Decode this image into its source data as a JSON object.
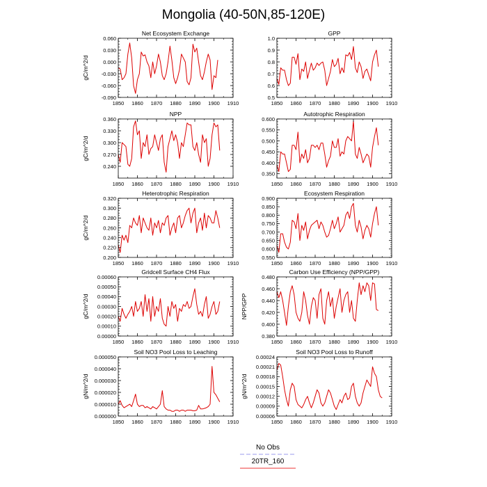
{
  "figure": {
    "title": "Mongolia (40-50N,85-120E)"
  },
  "legend": {
    "items": [
      {
        "label": "No Obs",
        "color": "#9999ee",
        "dashed": true
      },
      {
        "label": "20TR_160",
        "color": "#ee3333",
        "dashed": false
      }
    ]
  },
  "series_color": "#dd0000",
  "chart_data": [
    {
      "type": "line",
      "title": "Net Ecosystem Exchange",
      "ylabel": "gC/m^2/d",
      "xlabel": "",
      "xlim": [
        1850,
        1910
      ],
      "xticks": [
        1850,
        1860,
        1870,
        1880,
        1890,
        1900,
        1910
      ],
      "xticklabels": [
        "1850",
        "1860",
        "1870",
        "1880",
        "1890",
        "1900",
        "1910"
      ],
      "ylim": [
        -0.09,
        0.06
      ],
      "yticks": [
        -0.09,
        -0.06,
        -0.03,
        0.0,
        0.03,
        0.06
      ],
      "yticklabels": [
        "-0.090",
        "-0.060",
        "-0.030",
        "0.000",
        "0.030",
        "0.060"
      ],
      "series": [
        {
          "name": "20TR_160",
          "x_start": 1850,
          "values": [
            -0.015,
            -0.018,
            -0.045,
            -0.04,
            -0.03,
            0.02,
            0.048,
            0.01,
            -0.06,
            -0.08,
            -0.045,
            -0.03,
            0.025,
            0.015,
            0.018,
            0.0,
            -0.01,
            -0.04,
            0.0,
            -0.03,
            -0.01,
            0.02,
            0.0,
            -0.035,
            -0.045,
            -0.03,
            0.0,
            0.04,
            0.005,
            -0.04,
            -0.055,
            -0.04,
            -0.02,
            0.02,
            0.01,
            0.0,
            -0.05,
            -0.058,
            -0.04,
            0.045,
            0.025,
            0.035,
            0.0,
            -0.035,
            -0.045,
            -0.025,
            0.0,
            0.02,
            0.005,
            -0.07,
            -0.035,
            -0.04,
            0.005
          ]
        }
      ]
    },
    {
      "type": "line",
      "title": "GPP",
      "ylabel": "",
      "xlabel": "",
      "xlim": [
        1850,
        1910
      ],
      "xticks": [
        1850,
        1860,
        1870,
        1880,
        1890,
        1900,
        1910
      ],
      "xticklabels": [
        "1850",
        "1860",
        "1870",
        "1880",
        "1890",
        "1900",
        "1910"
      ],
      "ylim": [
        0.5,
        1.0
      ],
      "yticks": [
        0.5,
        0.6,
        0.7,
        0.8,
        0.9,
        1.0
      ],
      "yticklabels": [
        "0.5",
        "0.6",
        "0.7",
        "0.8",
        "0.9",
        "1.0"
      ],
      "series": [
        {
          "name": "20TR_160",
          "x_start": 1850,
          "values": [
            0.66,
            0.61,
            0.75,
            0.73,
            0.73,
            0.65,
            0.6,
            0.62,
            0.84,
            0.84,
            0.78,
            0.87,
            0.65,
            0.74,
            0.72,
            0.8,
            0.66,
            0.73,
            0.79,
            0.73,
            0.75,
            0.79,
            0.77,
            0.79,
            0.8,
            0.73,
            0.6,
            0.66,
            0.72,
            0.82,
            0.76,
            0.78,
            0.83,
            0.7,
            0.75,
            0.71,
            0.86,
            0.85,
            0.88,
            0.82,
            0.93,
            0.75,
            0.71,
            0.8,
            0.76,
            0.66,
            0.72,
            0.74,
            0.69,
            0.64,
            0.8,
            0.86,
            0.9,
            0.76
          ]
        }
      ]
    },
    {
      "type": "line",
      "title": "NPP",
      "ylabel": "gC/m^2/d",
      "xlabel": "",
      "xlim": [
        1850,
        1910
      ],
      "xticks": [
        1850,
        1860,
        1870,
        1880,
        1890,
        1900,
        1910
      ],
      "xticklabels": [
        "1850",
        "1860",
        "1870",
        "1880",
        "1890",
        "1900",
        "1910"
      ],
      "ylim": [
        0.21,
        0.36
      ],
      "yticks": [
        0.24,
        0.27,
        0.3,
        0.33,
        0.36
      ],
      "yticklabels": [
        "0.240",
        "0.270",
        "0.300",
        "0.330",
        "0.360"
      ],
      "series": [
        {
          "name": "20TR_160",
          "x_start": 1850,
          "values": [
            0.27,
            0.25,
            0.3,
            0.295,
            0.29,
            0.245,
            0.24,
            0.26,
            0.34,
            0.355,
            0.32,
            0.33,
            0.26,
            0.3,
            0.29,
            0.32,
            0.27,
            0.285,
            0.29,
            0.32,
            0.3,
            0.28,
            0.31,
            0.32,
            0.25,
            0.225,
            0.29,
            0.31,
            0.33,
            0.305,
            0.32,
            0.3,
            0.26,
            0.3,
            0.29,
            0.32,
            0.35,
            0.345,
            0.345,
            0.29,
            0.28,
            0.3,
            0.27,
            0.25,
            0.32,
            0.3,
            0.31,
            0.24,
            0.26,
            0.32,
            0.35,
            0.34,
            0.345,
            0.28
          ]
        }
      ]
    },
    {
      "type": "line",
      "title": "Autotrophic Respiration",
      "ylabel": "",
      "xlabel": "",
      "xlim": [
        1850,
        1910
      ],
      "xticks": [
        1850,
        1860,
        1870,
        1880,
        1890,
        1900,
        1910
      ],
      "xticklabels": [
        "1850",
        "1860",
        "1870",
        "1880",
        "1890",
        "1900",
        "1910"
      ],
      "ylim": [
        0.33,
        0.6
      ],
      "yticks": [
        0.35,
        0.4,
        0.45,
        0.5,
        0.55,
        0.6
      ],
      "yticklabels": [
        "0.350",
        "0.400",
        "0.450",
        "0.500",
        "0.550",
        "0.600"
      ],
      "series": [
        {
          "name": "20TR_160",
          "x_start": 1850,
          "values": [
            0.39,
            0.36,
            0.45,
            0.44,
            0.44,
            0.4,
            0.36,
            0.37,
            0.48,
            0.48,
            0.46,
            0.54,
            0.4,
            0.44,
            0.42,
            0.46,
            0.4,
            0.42,
            0.48,
            0.48,
            0.47,
            0.48,
            0.46,
            0.49,
            0.49,
            0.44,
            0.38,
            0.41,
            0.43,
            0.5,
            0.47,
            0.47,
            0.51,
            0.43,
            0.45,
            0.44,
            0.5,
            0.52,
            0.51,
            0.5,
            0.59,
            0.44,
            0.42,
            0.47,
            0.44,
            0.4,
            0.42,
            0.44,
            0.43,
            0.38,
            0.47,
            0.52,
            0.56,
            0.48
          ]
        }
      ]
    },
    {
      "type": "line",
      "title": "Heterotrophic Respiration",
      "ylabel": "gC/m^2/d",
      "xlabel": "",
      "xlim": [
        1850,
        1910
      ],
      "xticks": [
        1850,
        1860,
        1870,
        1880,
        1890,
        1900,
        1910
      ],
      "xticklabels": [
        "1850",
        "1860",
        "1870",
        "1880",
        "1890",
        "1900",
        "1910"
      ],
      "ylim": [
        0.2,
        0.32
      ],
      "yticks": [
        0.2,
        0.22,
        0.24,
        0.26,
        0.28,
        0.3,
        0.32
      ],
      "yticklabels": [
        "0.200",
        "0.220",
        "0.240",
        "0.260",
        "0.280",
        "0.300",
        "0.320"
      ],
      "series": [
        {
          "name": "20TR_160",
          "x_start": 1850,
          "values": [
            0.225,
            0.21,
            0.245,
            0.235,
            0.245,
            0.23,
            0.265,
            0.26,
            0.28,
            0.27,
            0.265,
            0.285,
            0.25,
            0.28,
            0.27,
            0.26,
            0.255,
            0.28,
            0.245,
            0.27,
            0.26,
            0.275,
            0.25,
            0.27,
            0.265,
            0.28,
            0.285,
            0.245,
            0.26,
            0.27,
            0.25,
            0.28,
            0.285,
            0.26,
            0.27,
            0.285,
            0.295,
            0.3,
            0.27,
            0.29,
            0.3,
            0.25,
            0.27,
            0.28,
            0.255,
            0.29,
            0.26,
            0.285,
            0.28,
            0.27,
            0.27,
            0.295,
            0.28,
            0.26
          ]
        }
      ]
    },
    {
      "type": "line",
      "title": "Ecosystem Respiration",
      "ylabel": "",
      "xlabel": "",
      "xlim": [
        1850,
        1910
      ],
      "xticks": [
        1850,
        1860,
        1870,
        1880,
        1890,
        1900,
        1910
      ],
      "xticklabels": [
        "1850",
        "1860",
        "1870",
        "1880",
        "1890",
        "1900",
        "1910"
      ],
      "ylim": [
        0.55,
        0.9
      ],
      "yticks": [
        0.55,
        0.6,
        0.65,
        0.7,
        0.75,
        0.8,
        0.85,
        0.9
      ],
      "yticklabels": [
        "0.550",
        "0.600",
        "0.650",
        "0.700",
        "0.750",
        "0.800",
        "0.850",
        "0.900"
      ],
      "series": [
        {
          "name": "20TR_160",
          "x_start": 1850,
          "values": [
            0.62,
            0.58,
            0.69,
            0.69,
            0.64,
            0.61,
            0.6,
            0.64,
            0.77,
            0.76,
            0.72,
            0.81,
            0.65,
            0.74,
            0.71,
            0.76,
            0.66,
            0.71,
            0.74,
            0.75,
            0.76,
            0.77,
            0.72,
            0.76,
            0.74,
            0.7,
            0.67,
            0.68,
            0.72,
            0.77,
            0.72,
            0.75,
            0.79,
            0.7,
            0.72,
            0.74,
            0.8,
            0.82,
            0.78,
            0.85,
            0.87,
            0.74,
            0.7,
            0.77,
            0.73,
            0.66,
            0.71,
            0.74,
            0.72,
            0.67,
            0.75,
            0.81,
            0.85,
            0.74
          ]
        }
      ]
    },
    {
      "type": "line",
      "title": "Gridcell Surface CH4 Flux",
      "ylabel": "gC/m^2/d",
      "xlabel": "",
      "xlim": [
        1850,
        1910
      ],
      "xticks": [
        1850,
        1860,
        1870,
        1880,
        1890,
        1900,
        1910
      ],
      "xticklabels": [
        "1850",
        "1860",
        "1870",
        "1880",
        "1890",
        "1900",
        "1910"
      ],
      "ylim": [
        0.0,
        0.0006
      ],
      "yticks": [
        0.0,
        0.0001,
        0.0002,
        0.0003,
        0.0004,
        0.0005,
        0.0006
      ],
      "yticklabels": [
        "0.00000",
        "0.00010",
        "0.00020",
        "0.00030",
        "0.00040",
        "0.00050",
        "0.00060"
      ],
      "series": [
        {
          "name": "20TR_160",
          "x_start": 1850,
          "values": [
            0.0002,
            0.00015,
            0.00028,
            0.00022,
            0.00018,
            0.00022,
            0.00025,
            0.0003,
            0.0002,
            0.00035,
            0.00025,
            0.00028,
            0.00035,
            0.0002,
            0.00042,
            0.00025,
            0.00038,
            0.00015,
            0.0004,
            0.0002,
            0.0003,
            0.00025,
            0.00038,
            0.00018,
            0.00012,
            0.0001,
            0.0003,
            0.0002,
            0.00035,
            0.00028,
            0.00032,
            0.00015,
            0.00028,
            0.00025,
            0.00032,
            0.0003,
            0.00035,
            0.00028,
            0.0003,
            0.0004,
            0.00048,
            0.00032,
            0.00022,
            0.00025,
            0.0002,
            0.00032,
            0.0004,
            0.00018,
            0.00022,
            0.0003,
            0.00035,
            0.00022,
            0.00025,
            0.00035
          ]
        }
      ]
    },
    {
      "type": "line",
      "title": "Carbon Use Efficiency (NPP/GPP)",
      "ylabel": "NPP/GPP",
      "xlabel": "",
      "xlim": [
        1850,
        1910
      ],
      "xticks": [
        1850,
        1860,
        1870,
        1880,
        1890,
        1900,
        1910
      ],
      "xticklabels": [
        "1850",
        "1860",
        "1870",
        "1880",
        "1890",
        "1900",
        "1910"
      ],
      "ylim": [
        0.38,
        0.48
      ],
      "yticks": [
        0.38,
        0.4,
        0.42,
        0.44,
        0.46,
        0.48
      ],
      "yticklabels": [
        "0.380",
        "0.400",
        "0.420",
        "0.440",
        "0.460",
        "0.480"
      ],
      "series": [
        {
          "name": "20TR_160",
          "x_start": 1850,
          "values": [
            0.455,
            0.445,
            0.455,
            0.44,
            0.42,
            0.398,
            0.43,
            0.455,
            0.465,
            0.45,
            0.42,
            0.41,
            0.405,
            0.42,
            0.455,
            0.44,
            0.415,
            0.4,
            0.43,
            0.445,
            0.44,
            0.41,
            0.45,
            0.46,
            0.41,
            0.4,
            0.44,
            0.455,
            0.43,
            0.445,
            0.41,
            0.43,
            0.445,
            0.46,
            0.42,
            0.44,
            0.45,
            0.455,
            0.42,
            0.44,
            0.41,
            0.405,
            0.44,
            0.47,
            0.45,
            0.465,
            0.455,
            0.47,
            0.465,
            0.44,
            0.47,
            0.468,
            0.425,
            0.423
          ]
        }
      ]
    },
    {
      "type": "line",
      "title": "Soil NO3 Pool Loss to Leaching",
      "ylabel": "gN/m^2/d",
      "xlabel": "",
      "xlim": [
        1850,
        1910
      ],
      "xticks": [
        1850,
        1860,
        1870,
        1880,
        1890,
        1900,
        1910
      ],
      "xticklabels": [
        "1850",
        "1860",
        "1870",
        "1880",
        "1890",
        "1900",
        "1910"
      ],
      "ylim": [
        0.0,
        5e-05
      ],
      "yticks": [
        0.0,
        1e-05,
        2e-05,
        3e-05,
        4e-05,
        5e-05
      ],
      "yticklabels": [
        "0.000000",
        "0.000010",
        "0.000020",
        "0.000030",
        "0.000040",
        "0.000050"
      ],
      "series": [
        {
          "name": "20TR_160",
          "x_start": 1850,
          "values": [
            1e-05,
            1.3e-05,
            9e-06,
            7e-06,
            8e-06,
            9e-06,
            1e-05,
            8e-06,
            1.3e-05,
            1.85e-05,
            1e-05,
            8e-06,
            9e-06,
            9e-06,
            7e-06,
            8e-06,
            7e-06,
            6e-06,
            8e-06,
            7e-06,
            6e-06,
            8e-06,
            1e-05,
            2.15e-05,
            8e-06,
            6e-06,
            5e-06,
            5e-06,
            4e-06,
            4e-06,
            5e-06,
            5e-06,
            4e-06,
            5e-06,
            5e-06,
            4e-06,
            5e-06,
            5e-06,
            5e-06,
            4.5e-06,
            4.5e-06,
            5e-06,
            9e-06,
            6e-06,
            6e-06,
            6.5e-06,
            7e-06,
            8e-06,
            1e-05,
            4.2e-05,
            2e-05,
            1.8e-05,
            1.5e-05,
            1.2e-05
          ]
        }
      ]
    },
    {
      "type": "line",
      "title": "Soil NO3 Pool Loss to Runoff",
      "ylabel": "gN/m^2/d",
      "xlabel": "",
      "xlim": [
        1850,
        1910
      ],
      "xticks": [
        1850,
        1860,
        1870,
        1880,
        1890,
        1900,
        1910
      ],
      "xticklabels": [
        "1850",
        "1860",
        "1870",
        "1880",
        "1890",
        "1900",
        "1910"
      ],
      "ylim": [
        6e-05,
        0.00024
      ],
      "yticks": [
        6e-05,
        9e-05,
        0.00012,
        0.00015,
        0.00018,
        0.00021,
        0.00024
      ],
      "yticklabels": [
        "0.00006",
        "0.00009",
        "0.00012",
        "0.00015",
        "0.00018",
        "0.00021",
        "0.00024"
      ],
      "series": [
        {
          "name": "20TR_160",
          "x_start": 1850,
          "values": [
            0.0002,
            0.00022,
            0.000215,
            0.00018,
            0.00014,
            0.00011,
            9e-05,
            0.00014,
            0.00016,
            0.00015,
            0.00011,
            9.5e-05,
            9e-05,
            8.5e-05,
            9.5e-05,
            0.00011,
            0.00012,
            0.0001,
            8.5e-05,
            0.0001,
            0.00012,
            0.00014,
            0.00013,
            0.0001,
            9e-05,
            0.0001,
            0.00012,
            0.00014,
            0.00013,
            0.00011,
            9e-05,
            8e-05,
            9.5e-05,
            0.00011,
            0.0001,
            0.00012,
            0.00013,
            0.00011,
            0.000115,
            0.00015,
            0.00016,
            0.00012,
            0.0001,
            9e-05,
            0.0001,
            0.00013,
            0.00015,
            0.00017,
            0.00016,
            0.00015,
            0.00021,
            0.00019,
            0.00018,
            0.00014,
            0.00012,
            0.000115
          ]
        }
      ]
    }
  ]
}
